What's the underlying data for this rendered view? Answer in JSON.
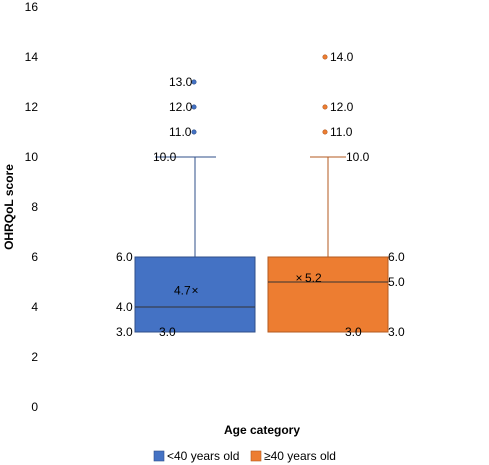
{
  "chart_data": {
    "type": "box",
    "xlabel": "Age category",
    "ylabel": "OHRQoL score",
    "ylim": [
      0,
      16
    ],
    "yticks": [
      0,
      2,
      4,
      6,
      8,
      10,
      12,
      14,
      16
    ],
    "grid": false,
    "legend_position": "bottom",
    "series": [
      {
        "name": "<40 years old",
        "color": "#4472C4",
        "edge": "#2F4F8A",
        "min": 3.0,
        "q1": 3.0,
        "median": 4.0,
        "q3": 6.0,
        "max": 10.0,
        "mean": 4.7,
        "outliers": [
          11.0,
          12.0,
          13.0
        ],
        "labels": {
          "max": "10.0",
          "q3": "6.0",
          "median": "4.0",
          "q1": "3.0",
          "min": "3.0",
          "mean": "4.7",
          "outliers": [
            "11.0",
            "12.0",
            "13.0"
          ]
        }
      },
      {
        "name": "≥40 years old",
        "color": "#ED7D31",
        "edge": "#B35A1F",
        "min": 3.0,
        "q1": 3.0,
        "median": 5.0,
        "q3": 6.0,
        "max": 10.0,
        "mean": 5.2,
        "outliers": [
          11.0,
          12.0,
          14.0
        ],
        "labels": {
          "max": "10.0",
          "q3": "6.0",
          "median": "5.0",
          "q1": "3.0",
          "min": "3.0",
          "mean": "5.2",
          "outliers": [
            "11.0",
            "12.0",
            "14.0"
          ]
        }
      }
    ]
  }
}
